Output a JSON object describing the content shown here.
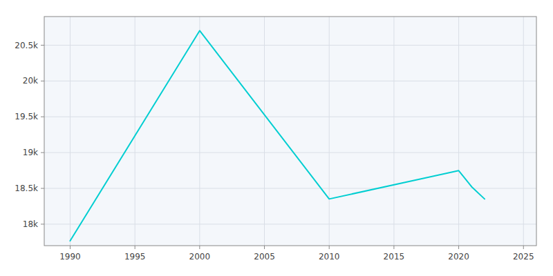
{
  "chart_data": {
    "type": "line",
    "x": [
      1990,
      2000,
      2010,
      2020,
      2021,
      2022
    ],
    "values": [
      17767,
      20703,
      18352,
      18748,
      18522,
      18352
    ],
    "color": "#00CED1",
    "xlim": [
      1988,
      2026
    ],
    "ylim": [
      17700,
      20900
    ],
    "xticks": [
      1990,
      1995,
      2000,
      2005,
      2010,
      2015,
      2020,
      2025
    ],
    "yticks": [
      {
        "value": 18000,
        "label": "18k"
      },
      {
        "value": 18500,
        "label": "18.5k"
      },
      {
        "value": 19000,
        "label": "19k"
      },
      {
        "value": 19500,
        "label": "19.5k"
      },
      {
        "value": 20000,
        "label": "20k"
      },
      {
        "value": 20500,
        "label": "20.5k"
      }
    ],
    "grid": true
  }
}
